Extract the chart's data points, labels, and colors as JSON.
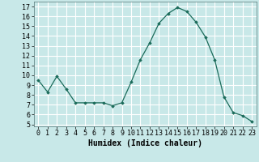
{
  "x": [
    0,
    1,
    2,
    3,
    4,
    5,
    6,
    7,
    8,
    9,
    10,
    11,
    12,
    13,
    14,
    15,
    16,
    17,
    18,
    19,
    20,
    21,
    22,
    23
  ],
  "y": [
    9.5,
    8.3,
    9.9,
    8.6,
    7.2,
    7.2,
    7.2,
    7.2,
    6.9,
    7.2,
    9.3,
    11.6,
    13.3,
    15.3,
    16.3,
    16.9,
    16.5,
    15.4,
    13.9,
    11.6,
    7.8,
    6.2,
    5.9,
    5.3
  ],
  "line_color": "#1a6b5a",
  "marker": "D",
  "marker_size": 1.8,
  "bg_color": "#c8e8e8",
  "grid_color": "#ffffff",
  "xlabel": "Humidex (Indice chaleur)",
  "ylim": [
    4.8,
    17.5
  ],
  "xlim": [
    -0.5,
    23.5
  ],
  "yticks": [
    5,
    6,
    7,
    8,
    9,
    10,
    11,
    12,
    13,
    14,
    15,
    16,
    17
  ],
  "xticks": [
    0,
    1,
    2,
    3,
    4,
    5,
    6,
    7,
    8,
    9,
    10,
    11,
    12,
    13,
    14,
    15,
    16,
    17,
    18,
    19,
    20,
    21,
    22,
    23
  ],
  "xlabel_fontsize": 7,
  "tick_fontsize": 6
}
